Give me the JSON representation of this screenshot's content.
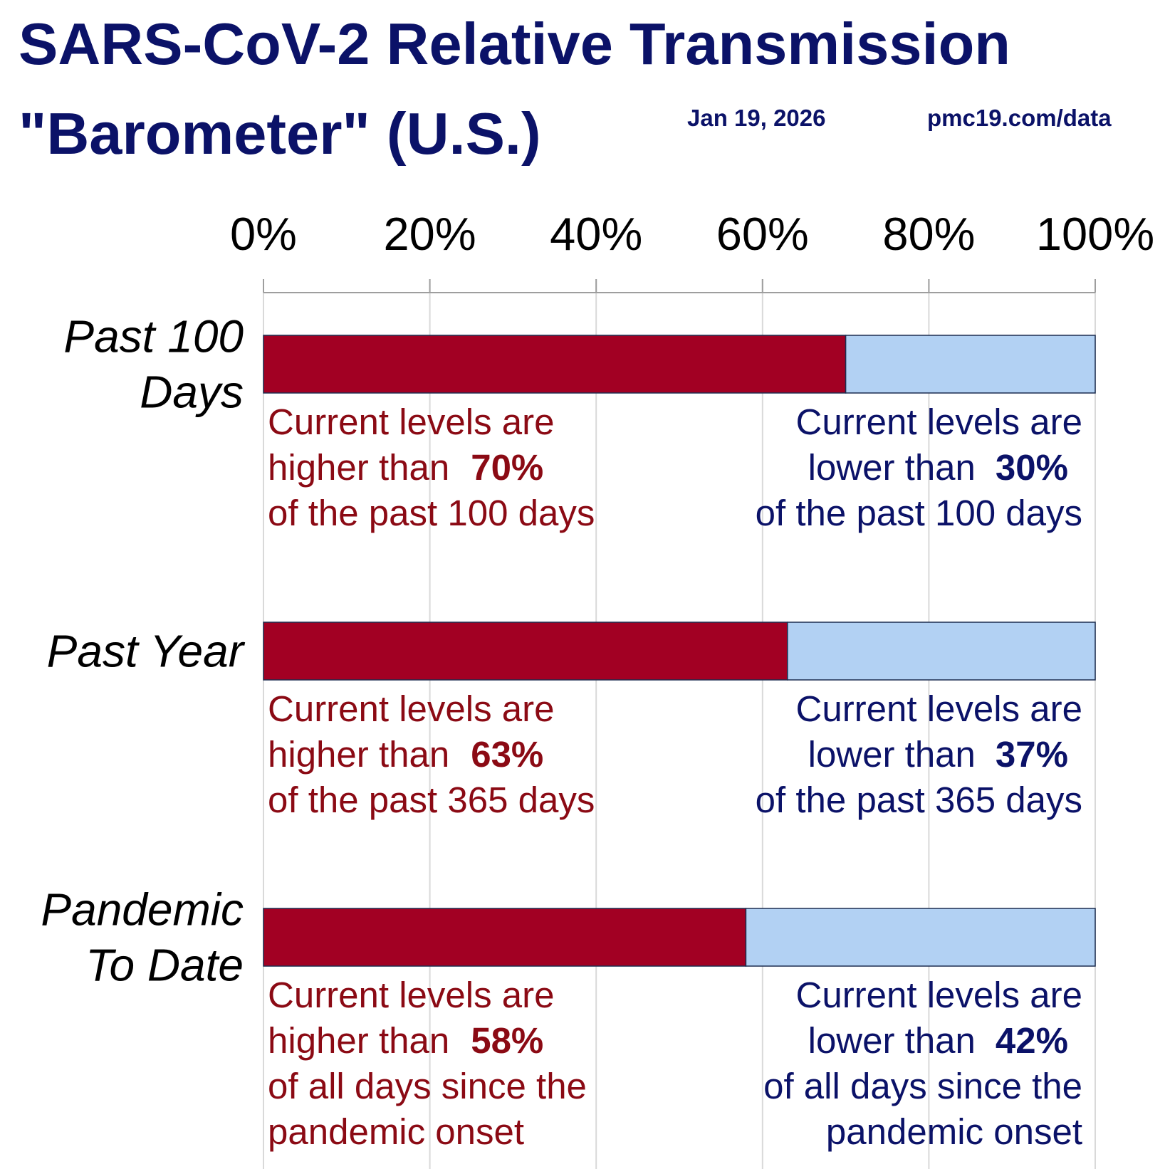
{
  "header": {
    "title_line1": "SARS-CoV-2 Relative Transmission",
    "title_line2": "\"Barometer\" (U.S.)",
    "date": "Jan 19, 2026",
    "source": "pmc19.com/data"
  },
  "colors": {
    "title": "#0b1268",
    "higher_bar": "#a20023",
    "lower_bar": "#b2d1f3",
    "higher_text": "#8b0a14",
    "lower_text": "#0b1268"
  },
  "chart_data": {
    "type": "bar",
    "orientation": "horizontal",
    "stacked": true,
    "title": "SARS-CoV-2 Relative Transmission \"Barometer\" (U.S.)",
    "xlim": [
      0,
      100
    ],
    "xticks": [
      "0%",
      "20%",
      "40%",
      "60%",
      "80%",
      "100%"
    ],
    "grid": true,
    "categories": [
      [
        "Past 100",
        "Days"
      ],
      [
        "Past Year"
      ],
      [
        "Pandemic",
        "To Date"
      ]
    ],
    "series": [
      {
        "values": [
          70,
          63,
          58
        ]
      },
      {
        "values": [
          30,
          37,
          42
        ]
      }
    ],
    "annotations": [
      {
        "higher": {
          "line1": "Current levels are",
          "line2": "higher than",
          "value": "70%",
          "tail": [
            "of the past 100 days"
          ]
        },
        "lower": {
          "line1": "Current levels are",
          "line2": "lower than",
          "value": "30%",
          "tail": [
            "of the past 100 days"
          ]
        }
      },
      {
        "higher": {
          "line1": "Current levels are",
          "line2": "higher than",
          "value": "63%",
          "tail": [
            "of the past 365 days"
          ]
        },
        "lower": {
          "line1": "Current levels are",
          "line2": "lower than",
          "value": "37%",
          "tail": [
            "of the past 365 days"
          ]
        }
      },
      {
        "higher": {
          "line1": "Current levels are",
          "line2": "higher than",
          "value": "58%",
          "tail": [
            "of all days since the",
            "pandemic onset"
          ]
        },
        "lower": {
          "line1": "Current levels are",
          "line2": "lower than",
          "value": "42%",
          "tail": [
            "of all days since the",
            "pandemic onset"
          ]
        }
      }
    ]
  }
}
